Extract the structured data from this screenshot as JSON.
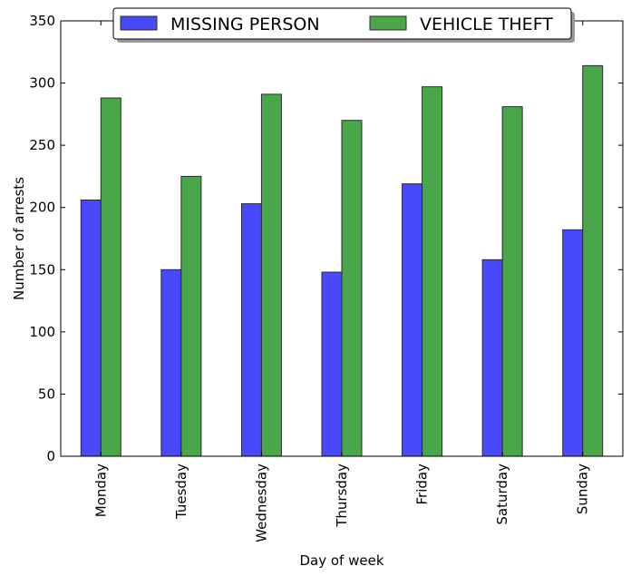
{
  "chart_data": {
    "type": "bar",
    "title": "",
    "xlabel": "Day of week",
    "ylabel": "Number of arrests",
    "ylim": [
      0,
      350
    ],
    "yticks": [
      0,
      50,
      100,
      150,
      200,
      250,
      300,
      350
    ],
    "grid": false,
    "legend_position": "top-center",
    "categories": [
      "Monday",
      "Tuesday",
      "Wednesday",
      "Thursday",
      "Friday",
      "Saturday",
      "Sunday"
    ],
    "series": [
      {
        "name": "MISSING PERSON",
        "color": "#4949fc",
        "values": [
          206,
          150,
          203,
          148,
          219,
          158,
          182
        ]
      },
      {
        "name": "VEHICLE THEFT",
        "color": "#49a749",
        "values": [
          288,
          225,
          291,
          270,
          297,
          281,
          314
        ]
      }
    ]
  }
}
